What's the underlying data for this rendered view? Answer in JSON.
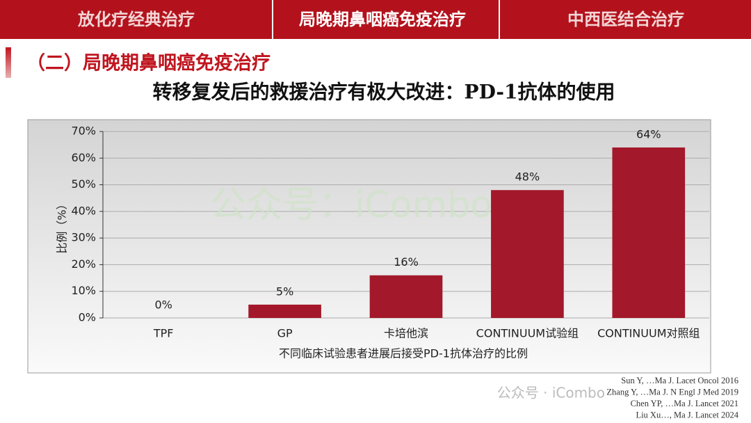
{
  "tabs": [
    "放化疗经典治疗",
    "局晚期鼻咽癌免疫治疗",
    "中西医结合治疗"
  ],
  "heading": "（二）局晚期鼻咽癌免疫治疗",
  "subtitle": "转移复发后的救援治疗有极大改进：PD-1抗体的使用",
  "chart_data": {
    "type": "bar",
    "xlabel": "不同临床试验患者进展后接受PD-1抗体治疗的比例",
    "ylabel": "比例（%）",
    "categories": [
      "TPF",
      "GP",
      "卡培他滨",
      "CONTINUUM试验组",
      "CONTINUUM对照组"
    ],
    "values": [
      0,
      5,
      16,
      48,
      64
    ],
    "value_labels": [
      "0%",
      "5%",
      "16%",
      "48%",
      "64%"
    ],
    "color": "#a3182a",
    "ylim": [
      0,
      70
    ],
    "yticks": [
      {
        "value": 0,
        "label": "0%"
      },
      {
        "value": 10,
        "label": "10%"
      },
      {
        "value": 20,
        "label": "20%"
      },
      {
        "value": 30,
        "label": "30%"
      },
      {
        "value": 40,
        "label": "40%"
      },
      {
        "value": 50,
        "label": "50%"
      },
      {
        "value": 60,
        "label": "60%"
      },
      {
        "value": 70,
        "label": "70%"
      }
    ],
    "grid": true
  },
  "watermark": "公众号：iCombo",
  "logo": "公众号 · iCombo",
  "references": [
    "Sun Y, …Ma J. Lacet Oncol 2016",
    "Zhang Y, …Ma J. N Engl J Med 2019",
    "Chen YP, …Ma J. Lancet 2021",
    "Liu Xu…, Ma J. Lancet 2024"
  ]
}
